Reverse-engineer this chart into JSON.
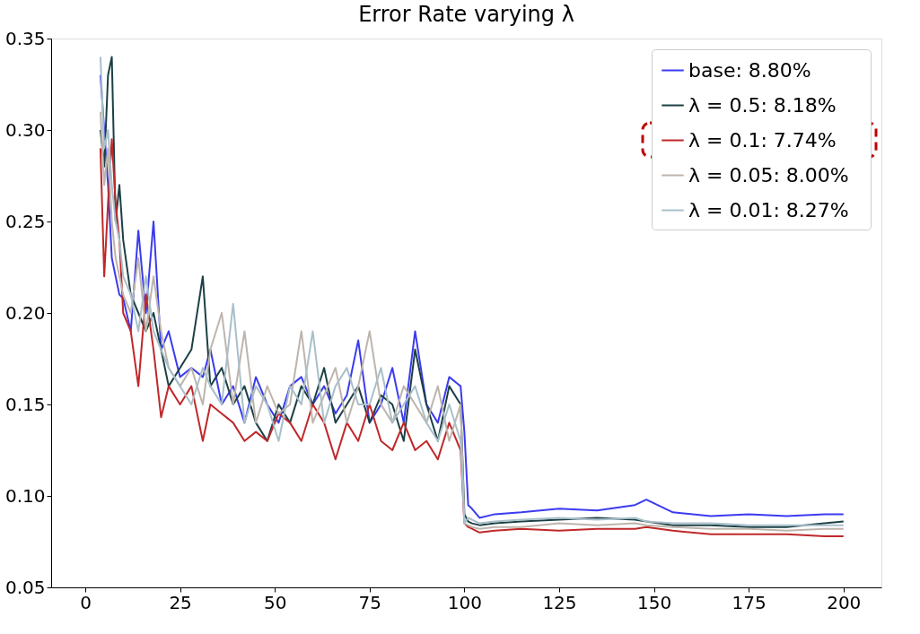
{
  "chart_data": {
    "type": "line",
    "title": "Error Rate varying λ",
    "xlim": [
      -9,
      210
    ],
    "ylim": [
      0.05,
      0.35
    ],
    "xticks": [
      0,
      25,
      50,
      75,
      100,
      125,
      150,
      175,
      200
    ],
    "yticks": [
      0.05,
      {
        "value": 0.1,
        "label": "0.10"
      },
      0.15,
      {
        "value": 0.2,
        "label": "0.20"
      },
      0.25,
      {
        "value": 0.3,
        "label": "0.30"
      },
      0.35
    ],
    "grid": false,
    "legend": "top right",
    "line_style": "solid",
    "marker": "none",
    "x": [
      4,
      5,
      6,
      7,
      8,
      9,
      10,
      12,
      14,
      16,
      18,
      20,
      22,
      25,
      28,
      31,
      33,
      36,
      39,
      42,
      45,
      48,
      51,
      54,
      57,
      60,
      63,
      66,
      69,
      72,
      75,
      78,
      81,
      84,
      87,
      90,
      93,
      96,
      99,
      100,
      101,
      102,
      104,
      108,
      115,
      125,
      135,
      145,
      148,
      155,
      165,
      175,
      185,
      195,
      200
    ],
    "series": [
      {
        "name": "base:   8.80%",
        "color": "#3b3bf0",
        "values": [
          0.33,
          0.3,
          0.27,
          0.23,
          0.22,
          0.21,
          0.208,
          0.19,
          0.245,
          0.2,
          0.25,
          0.18,
          0.19,
          0.165,
          0.17,
          0.165,
          0.18,
          0.15,
          0.16,
          0.14,
          0.165,
          0.15,
          0.14,
          0.16,
          0.165,
          0.15,
          0.16,
          0.145,
          0.155,
          0.185,
          0.14,
          0.15,
          0.17,
          0.14,
          0.19,
          0.15,
          0.14,
          0.165,
          0.16,
          0.135,
          0.095,
          0.093,
          0.088,
          0.09,
          0.091,
          0.093,
          0.092,
          0.095,
          0.098,
          0.091,
          0.089,
          0.09,
          0.089,
          0.09,
          0.09
        ]
      },
      {
        "name": "λ = 0.5:   8.18%",
        "color": "#1b4044",
        "values": [
          0.3,
          0.28,
          0.33,
          0.34,
          0.25,
          0.27,
          0.24,
          0.21,
          0.2,
          0.19,
          0.2,
          0.18,
          0.16,
          0.17,
          0.18,
          0.22,
          0.16,
          0.17,
          0.15,
          0.16,
          0.14,
          0.13,
          0.15,
          0.14,
          0.16,
          0.15,
          0.17,
          0.14,
          0.15,
          0.16,
          0.14,
          0.155,
          0.15,
          0.13,
          0.18,
          0.15,
          0.13,
          0.16,
          0.15,
          0.09,
          0.086,
          0.085,
          0.084,
          0.085,
          0.086,
          0.087,
          0.088,
          0.087,
          0.086,
          0.084,
          0.084,
          0.083,
          0.083,
          0.085,
          0.086
        ]
      },
      {
        "name": "λ = 0.1:   7.74%",
        "color": "#c0282a",
        "values": [
          0.29,
          0.22,
          0.26,
          0.295,
          0.26,
          0.24,
          0.2,
          0.19,
          0.16,
          0.21,
          0.18,
          0.143,
          0.16,
          0.15,
          0.16,
          0.13,
          0.15,
          0.145,
          0.14,
          0.13,
          0.135,
          0.13,
          0.145,
          0.14,
          0.13,
          0.15,
          0.14,
          0.12,
          0.14,
          0.13,
          0.15,
          0.13,
          0.125,
          0.14,
          0.125,
          0.13,
          0.12,
          0.14,
          0.125,
          0.085,
          0.083,
          0.082,
          0.08,
          0.081,
          0.082,
          0.081,
          0.082,
          0.082,
          0.083,
          0.081,
          0.079,
          0.079,
          0.079,
          0.078,
          0.078
        ]
      },
      {
        "name": "λ = 0.05:   8.00%",
        "color": "#bdb5ad",
        "values": [
          0.31,
          0.27,
          0.29,
          0.25,
          0.23,
          0.22,
          0.21,
          0.2,
          0.23,
          0.19,
          0.22,
          0.19,
          0.17,
          0.16,
          0.17,
          0.15,
          0.18,
          0.2,
          0.15,
          0.19,
          0.14,
          0.16,
          0.145,
          0.15,
          0.19,
          0.14,
          0.155,
          0.17,
          0.14,
          0.16,
          0.19,
          0.15,
          0.14,
          0.16,
          0.15,
          0.14,
          0.16,
          0.13,
          0.15,
          0.085,
          0.084,
          0.083,
          0.082,
          0.083,
          0.083,
          0.085,
          0.084,
          0.085,
          0.084,
          0.083,
          0.082,
          0.082,
          0.081,
          0.082,
          0.082
        ]
      },
      {
        "name": "λ = 0.01:   8.27%",
        "color": "#a9bfca",
        "values": [
          0.34,
          0.29,
          0.3,
          0.27,
          0.25,
          0.24,
          0.22,
          0.21,
          0.19,
          0.22,
          0.19,
          0.18,
          0.17,
          0.16,
          0.15,
          0.17,
          0.16,
          0.15,
          0.205,
          0.14,
          0.16,
          0.15,
          0.13,
          0.16,
          0.15,
          0.19,
          0.14,
          0.16,
          0.17,
          0.15,
          0.15,
          0.17,
          0.14,
          0.15,
          0.16,
          0.14,
          0.13,
          0.15,
          0.13,
          0.085,
          0.088,
          0.087,
          0.085,
          0.086,
          0.087,
          0.088,
          0.087,
          0.088,
          0.086,
          0.085,
          0.085,
          0.084,
          0.084,
          0.084,
          0.084
        ]
      }
    ]
  }
}
